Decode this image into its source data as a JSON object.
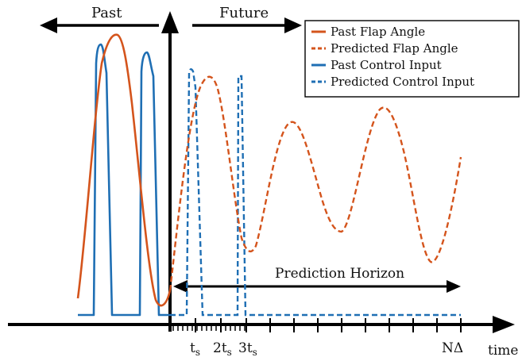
{
  "labels": {
    "past": "Past",
    "future": "Future",
    "prediction_horizon": "Prediction Horizon",
    "time": "time",
    "tick_ts": "t",
    "tick_2ts": "2t",
    "tick_3ts": "3t",
    "tick_sub": "s",
    "tick_ndelta": "NΔ"
  },
  "legend": [
    {
      "label": "Past Flap Angle",
      "color": "#d4541c",
      "dash": "solid"
    },
    {
      "label": "Predicted Flap Angle",
      "color": "#d4541c",
      "dash": "dashed"
    },
    {
      "label": "Past Control Input",
      "color": "#1f6fb4",
      "dash": "solid"
    },
    {
      "label": "Predicted Control Input",
      "color": "#1f6fb4",
      "dash": "dashed"
    }
  ],
  "colors": {
    "flap": "#d4541c",
    "control": "#1f6fb4",
    "axis": "#000000"
  }
}
